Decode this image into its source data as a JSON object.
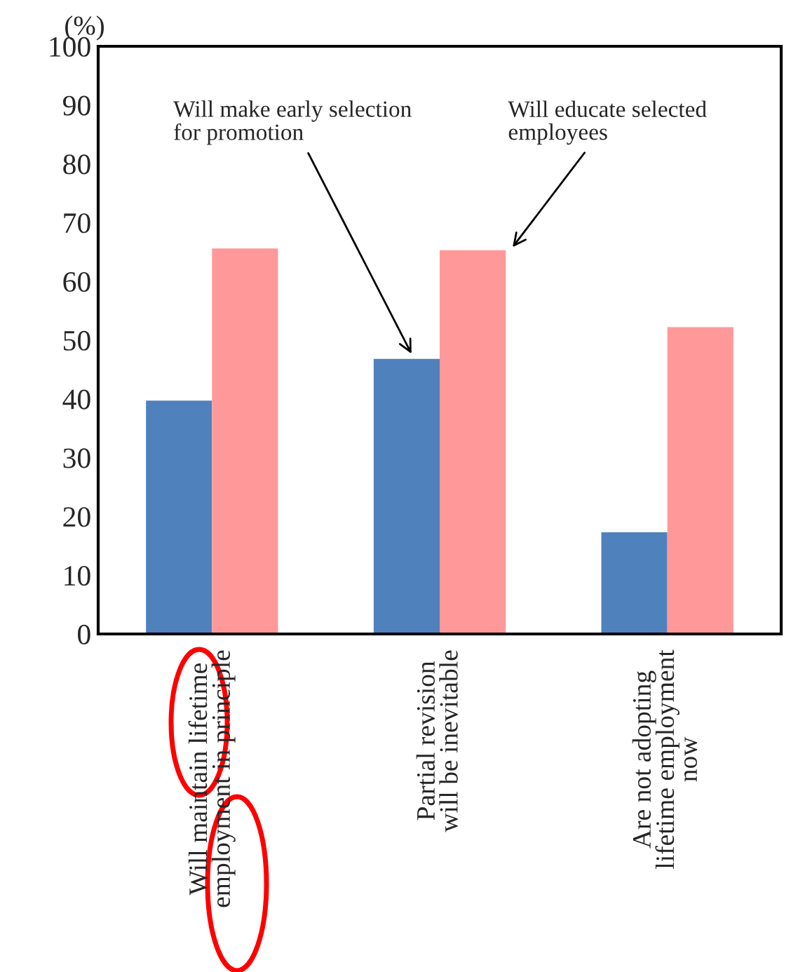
{
  "chart_data": {
    "type": "bar",
    "ylabel": "(%)",
    "categories": [
      "Will maintain lifetime\nemployment in principle",
      "Partial revision\nwill be inevitable",
      "Are not adopting\nlifetime employment\nnow"
    ],
    "series": [
      {
        "name": "Will make early selection\nfor promotion",
        "color": "#4f81bd",
        "values": [
          39.7,
          46.8,
          17.3
        ]
      },
      {
        "name": "Will educate selected\nemployees",
        "color": "#ff9999",
        "values": [
          65.6,
          65.3,
          52.2
        ]
      }
    ],
    "ylim": [
      0,
      100
    ],
    "yticks": [
      0,
      10,
      20,
      30,
      40,
      50,
      60,
      70,
      80,
      90,
      100
    ],
    "grid": false,
    "legend": false
  }
}
